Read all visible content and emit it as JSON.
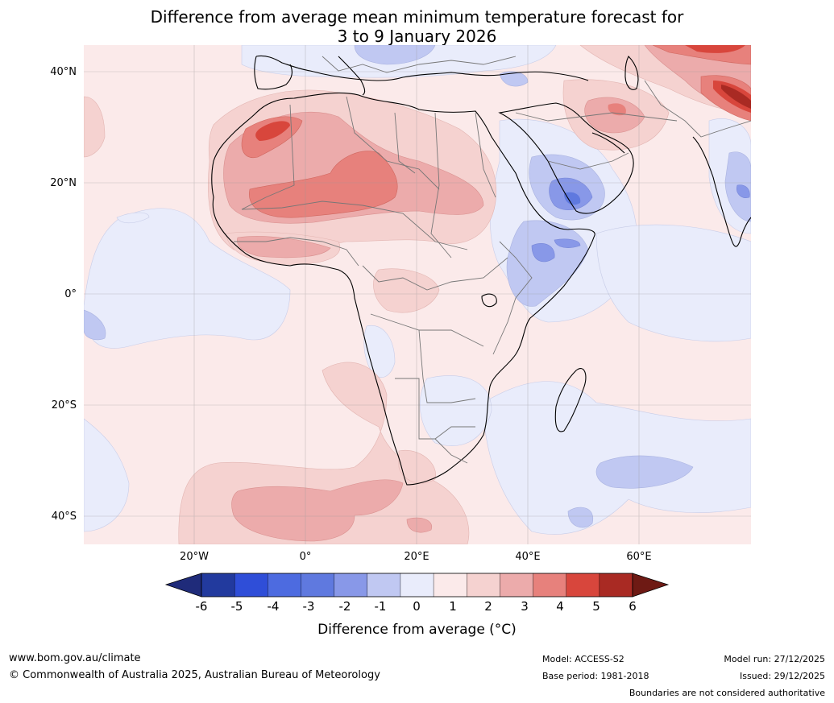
{
  "title": {
    "line1": "Difference from average mean minimum temperature forecast for",
    "line2": "3 to 9 January 2026"
  },
  "map": {
    "lat_labels": [
      "40°N",
      "20°N",
      "0°",
      "20°S",
      "40°S"
    ],
    "lon_labels": [
      "20°W",
      "0°",
      "20°E",
      "40°E",
      "60°E"
    ]
  },
  "colorbar": {
    "ticks": [
      "-6",
      "-5",
      "-4",
      "-3",
      "-2",
      "-1",
      "0",
      "1",
      "2",
      "3",
      "4",
      "5",
      "6"
    ],
    "colors": [
      "#223a9e",
      "#2f4ed8",
      "#4d6be0",
      "#5f79df",
      "#8898e8",
      "#c0c8f2",
      "#e9ecfb",
      "#fbeaea",
      "#f5d2d0",
      "#ecabab",
      "#e7817c",
      "#d8463c",
      "#a92a23"
    ],
    "underflow_color": "#1f2b7a",
    "overflow_color": "#6e1a14",
    "label": "Difference from average (°C)"
  },
  "footer": {
    "website": "www.bom.gov.au/climate",
    "copyright": "© Commonwealth of Australia 2025, Australian Bureau of Meteorology",
    "model": "Model: ACCESS-S2",
    "base_period": "Base period: 1981-2018",
    "model_run": "Model run: 27/12/2025",
    "issued": "Issued: 29/12/2025",
    "disclaimer": "Boundaries are not considered authoritative"
  }
}
